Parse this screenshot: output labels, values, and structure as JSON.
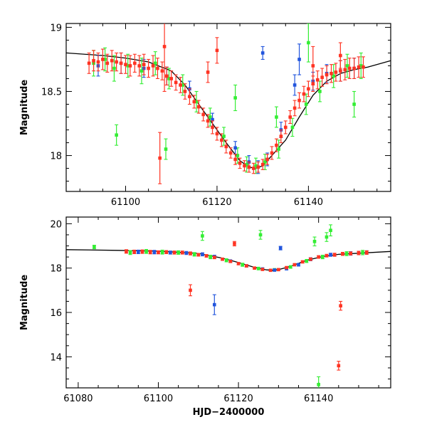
{
  "chart_data": [
    {
      "type": "scatter",
      "title": "",
      "xlabel": "",
      "ylabel": "Magnitude",
      "xlim": [
        61087,
        61158
      ],
      "ylim": [
        19.03,
        17.72
      ],
      "y_inverted": true,
      "xticks": [
        61100,
        61120,
        61140
      ],
      "xtick_labels": [
        "61100",
        "61120",
        "61140"
      ],
      "yticks": [
        18,
        18.5,
        19
      ],
      "ytick_labels": [
        "18",
        "18.5",
        "19"
      ],
      "model_curve": {
        "name": "model",
        "color": "#000000",
        "x": [
          61087,
          61095,
          61100,
          61105,
          61110,
          61113,
          61116,
          61119,
          61122,
          61125,
          61127,
          61128.5,
          61130,
          61132,
          61135,
          61138,
          61141,
          61144,
          61147,
          61150,
          61153,
          61158
        ],
        "y": [
          18.8,
          18.78,
          18.76,
          18.73,
          18.66,
          18.55,
          18.4,
          18.25,
          18.1,
          17.96,
          17.91,
          17.9,
          17.92,
          18.0,
          18.12,
          18.3,
          18.47,
          18.58,
          18.64,
          18.67,
          18.69,
          18.74
        ]
      },
      "series": [
        {
          "name": "red",
          "color": "#ff3322",
          "x": [
            61092,
            61093,
            61094,
            61095,
            61096,
            61097,
            61098,
            61099,
            61100,
            61101,
            61102,
            61103,
            61104,
            61105,
            61106,
            61107,
            61108,
            61109,
            61110,
            61111,
            61112,
            61113,
            61114,
            61115,
            61116,
            61117,
            61118,
            61119,
            61120,
            61121,
            61122,
            61123,
            61124,
            61125,
            61126,
            61127,
            61128,
            61129,
            61130,
            61131,
            61132,
            61133,
            61134,
            61135,
            61136,
            61137,
            61138,
            61139,
            61140,
            61141,
            61142,
            61143,
            61144,
            61145,
            61146,
            61147,
            61148,
            61149,
            61150,
            61151,
            61152,
            61107.5,
            61108.5,
            61118,
            61120,
            61141,
            61147
          ],
          "y": [
            18.72,
            18.74,
            18.73,
            18.75,
            18.72,
            18.74,
            18.73,
            18.72,
            18.71,
            18.7,
            18.72,
            18.7,
            18.71,
            18.68,
            18.7,
            18.68,
            18.66,
            18.62,
            18.6,
            18.57,
            18.55,
            18.5,
            18.46,
            18.42,
            18.38,
            18.32,
            18.27,
            18.22,
            18.17,
            18.12,
            18.07,
            18.02,
            17.97,
            17.94,
            17.92,
            17.91,
            17.9,
            17.91,
            17.93,
            17.97,
            18.02,
            18.08,
            18.15,
            18.22,
            18.3,
            18.37,
            18.43,
            18.48,
            18.52,
            18.56,
            18.59,
            18.61,
            18.63,
            18.64,
            18.65,
            18.66,
            18.67,
            18.68,
            18.68,
            18.69,
            18.69,
            17.98,
            18.85,
            18.65,
            18.82,
            18.7,
            18.78
          ],
          "yerr": [
            0.08,
            0.08,
            0.07,
            0.08,
            0.07,
            0.08,
            0.07,
            0.08,
            0.07,
            0.08,
            0.07,
            0.08,
            0.08,
            0.07,
            0.08,
            0.08,
            0.07,
            0.07,
            0.06,
            0.06,
            0.06,
            0.06,
            0.06,
            0.05,
            0.05,
            0.05,
            0.05,
            0.05,
            0.05,
            0.05,
            0.05,
            0.04,
            0.04,
            0.04,
            0.04,
            0.04,
            0.04,
            0.04,
            0.04,
            0.04,
            0.05,
            0.05,
            0.05,
            0.05,
            0.05,
            0.06,
            0.06,
            0.06,
            0.06,
            0.06,
            0.07,
            0.07,
            0.07,
            0.07,
            0.07,
            0.08,
            0.08,
            0.08,
            0.08,
            0.08,
            0.08,
            0.2,
            0.35,
            0.08,
            0.1,
            0.15,
            0.1
          ]
        },
        {
          "name": "green",
          "color": "#33ee33",
          "x": [
            61093,
            61095.5,
            61097.5,
            61100.5,
            61103.5,
            61106.5,
            61109.5,
            61112.5,
            61115.5,
            61118.5,
            61121.5,
            61124.5,
            61126.5,
            61128.5,
            61130.5,
            61133.5,
            61136.5,
            61139.5,
            61142.5,
            61145.5,
            61148.5,
            61151.5,
            61098,
            61108.8,
            61124,
            61133,
            61140,
            61150
          ],
          "y": [
            18.72,
            18.75,
            18.68,
            18.7,
            18.66,
            18.72,
            18.6,
            18.55,
            18.42,
            18.3,
            18.15,
            18.0,
            17.93,
            17.92,
            17.95,
            18.05,
            18.22,
            18.4,
            18.5,
            18.62,
            18.7,
            18.7,
            18.16,
            18.05,
            18.45,
            18.3,
            18.88,
            18.4
          ],
          "yerr": [
            0.1,
            0.09,
            0.1,
            0.09,
            0.1,
            0.09,
            0.08,
            0.08,
            0.08,
            0.07,
            0.07,
            0.06,
            0.06,
            0.06,
            0.06,
            0.07,
            0.07,
            0.08,
            0.08,
            0.09,
            0.09,
            0.1,
            0.08,
            0.08,
            0.1,
            0.08,
            0.15,
            0.1
          ]
        },
        {
          "name": "blue",
          "color": "#2255dd",
          "x": [
            61094,
            61099,
            61104,
            61109,
            61114,
            61119,
            61124,
            61127,
            61129,
            61131,
            61134,
            61137,
            61141,
            61144,
            61147,
            61150,
            61130,
            61138
          ],
          "y": [
            18.7,
            18.72,
            18.68,
            18.62,
            18.52,
            18.28,
            18.06,
            17.95,
            17.91,
            17.97,
            18.2,
            18.55,
            18.58,
            18.64,
            18.66,
            18.68,
            18.8,
            18.75
          ],
          "yerr": [
            0.08,
            0.08,
            0.07,
            0.07,
            0.06,
            0.05,
            0.05,
            0.05,
            0.05,
            0.05,
            0.06,
            0.08,
            0.07,
            0.07,
            0.08,
            0.08,
            0.05,
            0.12
          ]
        }
      ]
    },
    {
      "type": "scatter",
      "title": "",
      "xlabel": "HJD−2400000",
      "ylabel": "Magnitude",
      "xlim": [
        61077,
        61158
      ],
      "ylim": [
        20.3,
        12.6
      ],
      "y_inverted": true,
      "xticks": [
        61080,
        61100,
        61120,
        61140
      ],
      "xtick_labels": [
        "61080",
        "61100",
        "61120",
        "61140"
      ],
      "yticks": [
        14,
        16,
        18,
        20
      ],
      "ytick_labels": [
        "14",
        "16",
        "18",
        "20"
      ],
      "model_curve": {
        "name": "model",
        "color": "#000000",
        "x": [
          61077,
          61090,
          61100,
          61110,
          61116,
          61120,
          61124,
          61127,
          61128.5,
          61130,
          61133,
          61137,
          61141,
          61145,
          61150,
          61158
        ],
        "y": [
          18.83,
          18.8,
          18.76,
          18.66,
          18.45,
          18.25,
          18.03,
          17.92,
          17.9,
          17.93,
          18.08,
          18.35,
          18.52,
          18.62,
          18.67,
          18.75
        ]
      },
      "series": [
        {
          "name": "red",
          "color": "#ff3322",
          "x": [
            61092,
            61094,
            61096,
            61098,
            61100,
            61102,
            61104,
            61106,
            61108,
            61110,
            61112,
            61114,
            61116,
            61118,
            61120,
            61122,
            61124,
            61126,
            61128,
            61130,
            61132,
            61134,
            61136,
            61138,
            61140,
            61142,
            61144,
            61146,
            61148,
            61150,
            61152,
            61108,
            61119,
            61145,
            61145.5
          ],
          "y": [
            18.75,
            18.73,
            18.74,
            18.72,
            18.71,
            18.72,
            18.7,
            18.7,
            18.66,
            18.6,
            18.55,
            18.48,
            18.4,
            18.3,
            18.2,
            18.1,
            18.0,
            17.94,
            17.9,
            17.93,
            18.02,
            18.15,
            18.28,
            18.4,
            18.5,
            18.56,
            18.6,
            18.64,
            18.66,
            18.68,
            18.7,
            17.0,
            19.1,
            13.6,
            16.3
          ],
          "yerr": [
            0.08,
            0.08,
            0.08,
            0.08,
            0.07,
            0.07,
            0.07,
            0.07,
            0.07,
            0.06,
            0.06,
            0.06,
            0.05,
            0.05,
            0.05,
            0.05,
            0.04,
            0.04,
            0.04,
            0.04,
            0.05,
            0.05,
            0.05,
            0.06,
            0.06,
            0.06,
            0.07,
            0.07,
            0.07,
            0.08,
            0.08,
            0.25,
            0.1,
            0.2,
            0.2
          ]
        },
        {
          "name": "green",
          "color": "#33ee33",
          "x": [
            61084,
            61093,
            61097,
            61101,
            61105,
            61109,
            61111,
            61113,
            61117,
            61121,
            61125,
            61129,
            61133,
            61137,
            61139,
            61141,
            61143,
            61147,
            61151,
            61140,
            61125.5,
            61142
          ],
          "y": [
            18.95,
            18.7,
            18.75,
            18.72,
            18.7,
            18.62,
            19.45,
            18.5,
            18.35,
            18.15,
            17.98,
            17.92,
            18.05,
            18.32,
            19.2,
            18.5,
            19.7,
            18.65,
            18.7,
            12.75,
            19.5,
            19.4
          ],
          "yerr": [
            0.08,
            0.09,
            0.09,
            0.09,
            0.08,
            0.08,
            0.2,
            0.08,
            0.07,
            0.07,
            0.06,
            0.06,
            0.06,
            0.07,
            0.2,
            0.08,
            0.25,
            0.09,
            0.1,
            0.35,
            0.2,
            0.2
          ]
        },
        {
          "name": "blue",
          "color": "#2255dd",
          "x": [
            61095,
            61099,
            61103,
            61107,
            61111,
            61114,
            61118,
            61122,
            61126,
            61129,
            61132,
            61135,
            61138,
            61143,
            61148,
            61152,
            61114,
            61130.5
          ],
          "y": [
            18.73,
            18.72,
            18.7,
            18.68,
            18.62,
            18.52,
            18.32,
            18.1,
            17.96,
            17.91,
            17.97,
            18.15,
            18.4,
            18.6,
            18.66,
            18.7,
            16.35,
            18.9
          ],
          "yerr": [
            0.08,
            0.08,
            0.07,
            0.07,
            0.07,
            0.06,
            0.05,
            0.05,
            0.05,
            0.05,
            0.05,
            0.06,
            0.07,
            0.07,
            0.08,
            0.08,
            0.45,
            0.08
          ]
        }
      ]
    }
  ]
}
